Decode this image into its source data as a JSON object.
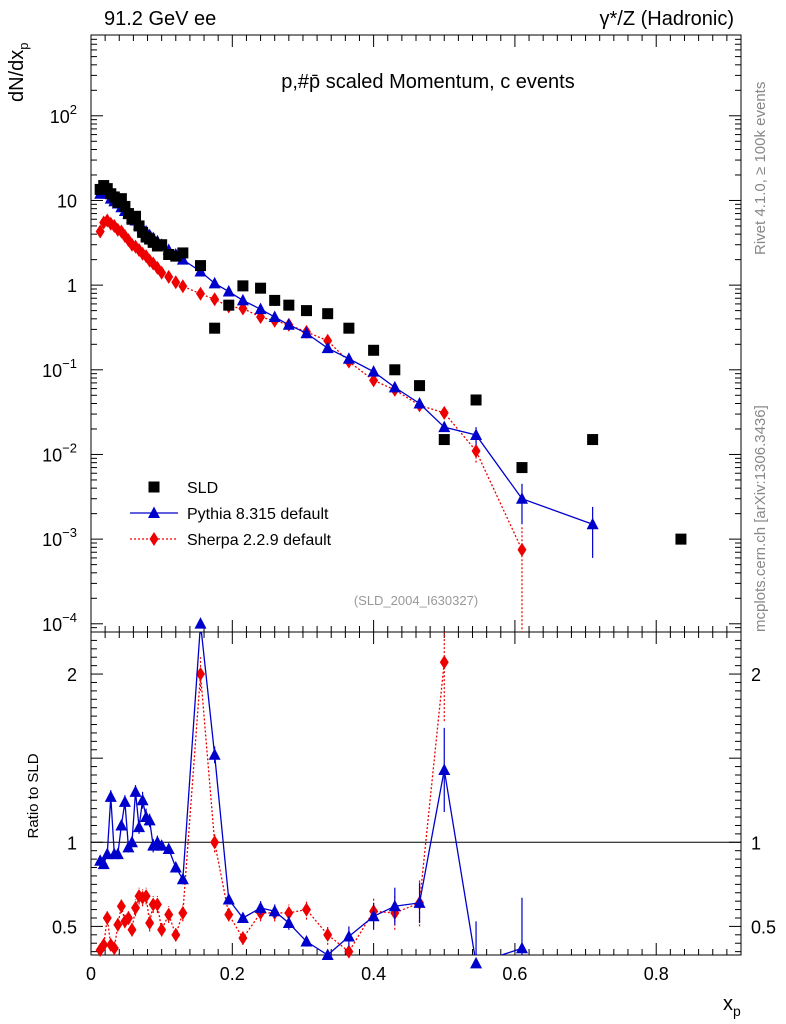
{
  "header": {
    "left": "91.2 GeV ee",
    "right": "γ*/Z (Hadronic)",
    "side_rivet": "Rivet 4.1.0, ≥ 100k events",
    "side_mcplots": "mcplots.cern.ch [arXiv:1306.3436]"
  },
  "chart_data": [
    {
      "type": "scatter",
      "title": "p,#p̄ scaled Momentum, c events",
      "ylabel": "dN/dx_p",
      "xlabel": "x_p",
      "yscale": "log",
      "xlim": [
        0,
        0.92
      ],
      "ylim": [
        8e-05,
        900
      ],
      "annotation": "(SLD_2004_I630327)",
      "legend_position": "lower-left",
      "y_tick_labels": [
        "10^-4",
        "10^-3",
        "10^-2",
        "10^-1",
        "1",
        "10",
        "10^2"
      ],
      "series": [
        {
          "name": "SLD",
          "color": "#000000",
          "marker": "square",
          "x": [
            0.013,
            0.018,
            0.023,
            0.028,
            0.033,
            0.038,
            0.043,
            0.048,
            0.053,
            0.058,
            0.063,
            0.068,
            0.073,
            0.078,
            0.083,
            0.088,
            0.094,
            0.1,
            0.11,
            0.12,
            0.13,
            0.155,
            0.175,
            0.195,
            0.215,
            0.24,
            0.26,
            0.28,
            0.305,
            0.335,
            0.365,
            0.4,
            0.43,
            0.465,
            0.5,
            0.545,
            0.61,
            0.71,
            0.835
          ],
          "values": [
            13.5,
            15.0,
            13.8,
            12.0,
            11.0,
            9.5,
            10.5,
            8.5,
            7.0,
            6.0,
            6.5,
            5.0,
            4.2,
            3.7,
            3.5,
            3.2,
            2.9,
            3.0,
            2.3,
            2.2,
            2.4,
            1.7,
            0.31,
            0.58,
            0.98,
            0.92,
            0.66,
            0.58,
            0.5,
            0.46,
            0.31,
            0.17,
            0.1,
            0.065,
            0.015,
            0.044,
            0.007,
            0.015,
            0.001
          ]
        },
        {
          "name": "Pythia 8.315 default",
          "color": "#0000cc",
          "marker": "triangle",
          "x": [
            0.013,
            0.018,
            0.023,
            0.028,
            0.033,
            0.038,
            0.043,
            0.048,
            0.053,
            0.058,
            0.063,
            0.068,
            0.073,
            0.078,
            0.083,
            0.088,
            0.094,
            0.1,
            0.11,
            0.12,
            0.13,
            0.155,
            0.175,
            0.195,
            0.215,
            0.24,
            0.26,
            0.28,
            0.305,
            0.335,
            0.365,
            0.4,
            0.43,
            0.465,
            0.5,
            0.545,
            0.61,
            0.71
          ],
          "values": [
            12.0,
            13.0,
            12.0,
            10.5,
            9.8,
            9.2,
            8.3,
            7.5,
            6.9,
            6.2,
            5.8,
            5.2,
            4.7,
            4.3,
            3.9,
            3.6,
            3.3,
            3.0,
            2.6,
            2.3,
            2.0,
            1.45,
            1.05,
            0.84,
            0.66,
            0.52,
            0.42,
            0.34,
            0.27,
            0.18,
            0.135,
            0.095,
            0.062,
            0.04,
            0.021,
            0.017,
            0.003,
            0.0015
          ],
          "errors": [
            0,
            0,
            0,
            0,
            0,
            0,
            0,
            0,
            0,
            0,
            0,
            0,
            0,
            0,
            0,
            0,
            0,
            0,
            0,
            0,
            0,
            0,
            0,
            0,
            0,
            0,
            0,
            0,
            0,
            0,
            0,
            0,
            0,
            0,
            0,
            0.004,
            0.0015,
            0.0009
          ]
        },
        {
          "name": "Sherpa 2.2.9 default",
          "color": "#ee0000",
          "marker": "diamond",
          "x": [
            0.013,
            0.018,
            0.023,
            0.028,
            0.033,
            0.038,
            0.043,
            0.048,
            0.053,
            0.058,
            0.063,
            0.068,
            0.073,
            0.078,
            0.083,
            0.088,
            0.094,
            0.1,
            0.11,
            0.12,
            0.13,
            0.155,
            0.175,
            0.195,
            0.215,
            0.24,
            0.26,
            0.28,
            0.305,
            0.335,
            0.365,
            0.4,
            0.43,
            0.465,
            0.5,
            0.545,
            0.61
          ],
          "values": [
            4.3,
            5.5,
            5.8,
            5.3,
            5.0,
            4.5,
            4.3,
            3.8,
            3.4,
            3.0,
            2.85,
            2.6,
            2.35,
            2.2,
            1.95,
            1.8,
            1.6,
            1.4,
            1.25,
            1.08,
            0.97,
            0.79,
            0.68,
            0.56,
            0.53,
            0.42,
            0.38,
            0.34,
            0.28,
            0.22,
            0.125,
            0.075,
            0.058,
            0.038,
            0.031,
            0.011,
            0.00075
          ],
          "errors": [
            0,
            0,
            0,
            0,
            0,
            0,
            0,
            0,
            0,
            0,
            0,
            0,
            0,
            0,
            0,
            0,
            0,
            0,
            0,
            0,
            0,
            0,
            0,
            0,
            0,
            0,
            0,
            0,
            0,
            0,
            0,
            0,
            0,
            0,
            0.004,
            0.003,
            0.0007
          ]
        }
      ]
    },
    {
      "type": "line",
      "ylabel": "Ratio to SLD",
      "xlabel": "x_p",
      "xlim": [
        0,
        0.92
      ],
      "ylim": [
        0.33,
        2.25
      ],
      "x_tick_labels": [
        "0",
        "0.2",
        "0.4",
        "0.6",
        "0.8"
      ],
      "y_tick_labels": [
        "0.5",
        "1",
        "2"
      ],
      "reference_line": 1,
      "series": [
        {
          "name": "Pythia 8.315 default",
          "color": "#0000cc",
          "marker": "triangle",
          "x": [
            0.013,
            0.018,
            0.023,
            0.028,
            0.033,
            0.038,
            0.043,
            0.048,
            0.053,
            0.058,
            0.063,
            0.068,
            0.073,
            0.078,
            0.083,
            0.088,
            0.094,
            0.1,
            0.11,
            0.12,
            0.13,
            0.155,
            0.175,
            0.195,
            0.215,
            0.24,
            0.26,
            0.28,
            0.305,
            0.335,
            0.365,
            0.4,
            0.43,
            0.465,
            0.5,
            0.545,
            0.61
          ],
          "values": [
            0.89,
            0.87,
            0.93,
            1.27,
            0.93,
            0.93,
            1.1,
            1.24,
            0.97,
            1.0,
            1.3,
            1.09,
            1.25,
            1.15,
            1.13,
            0.98,
            1.0,
            0.98,
            0.96,
            0.85,
            0.78,
            2.3,
            1.52,
            0.66,
            0.55,
            0.61,
            0.59,
            0.52,
            0.41,
            0.33,
            0.44,
            0.56,
            0.62,
            0.64,
            1.43,
            0.28,
            0.37
          ],
          "errors": [
            0.02,
            0.02,
            0.02,
            0.04,
            0.02,
            0.03,
            0.03,
            0.04,
            0.03,
            0.03,
            0.04,
            0.04,
            0.05,
            0.05,
            0.04,
            0.04,
            0.04,
            0.03,
            0.03,
            0.03,
            0.03,
            0.06,
            0.05,
            0.03,
            0.03,
            0.04,
            0.04,
            0.04,
            0.03,
            0.03,
            0.06,
            0.08,
            0.11,
            0.12,
            0.25,
            0.25,
            0.3
          ]
        },
        {
          "name": "Sherpa 2.2.9 default",
          "color": "#ee0000",
          "marker": "diamond",
          "x": [
            0.013,
            0.018,
            0.023,
            0.028,
            0.033,
            0.038,
            0.043,
            0.048,
            0.053,
            0.058,
            0.063,
            0.068,
            0.073,
            0.078,
            0.083,
            0.088,
            0.094,
            0.1,
            0.11,
            0.12,
            0.13,
            0.155,
            0.175,
            0.195,
            0.215,
            0.24,
            0.26,
            0.28,
            0.305,
            0.335,
            0.365,
            0.4,
            0.43,
            0.465,
            0.5
          ],
          "values": [
            0.36,
            0.39,
            0.55,
            0.39,
            0.37,
            0.51,
            0.62,
            0.53,
            0.55,
            0.48,
            0.61,
            0.68,
            0.67,
            0.68,
            0.52,
            0.63,
            0.63,
            0.48,
            0.57,
            0.45,
            0.58,
            2.0,
            1.0,
            0.57,
            0.43,
            0.58,
            0.58,
            0.58,
            0.6,
            0.45,
            0.35,
            0.59,
            0.58,
            0.64,
            2.07
          ],
          "errors": [
            0.03,
            0.03,
            0.04,
            0.03,
            0.03,
            0.04,
            0.04,
            0.04,
            0.04,
            0.04,
            0.05,
            0.05,
            0.05,
            0.05,
            0.05,
            0.05,
            0.05,
            0.04,
            0.05,
            0.04,
            0.05,
            0.1,
            0.06,
            0.04,
            0.04,
            0.05,
            0.05,
            0.05,
            0.06,
            0.06,
            0.05,
            0.08,
            0.1,
            0.14,
            0.35
          ]
        }
      ]
    }
  ]
}
